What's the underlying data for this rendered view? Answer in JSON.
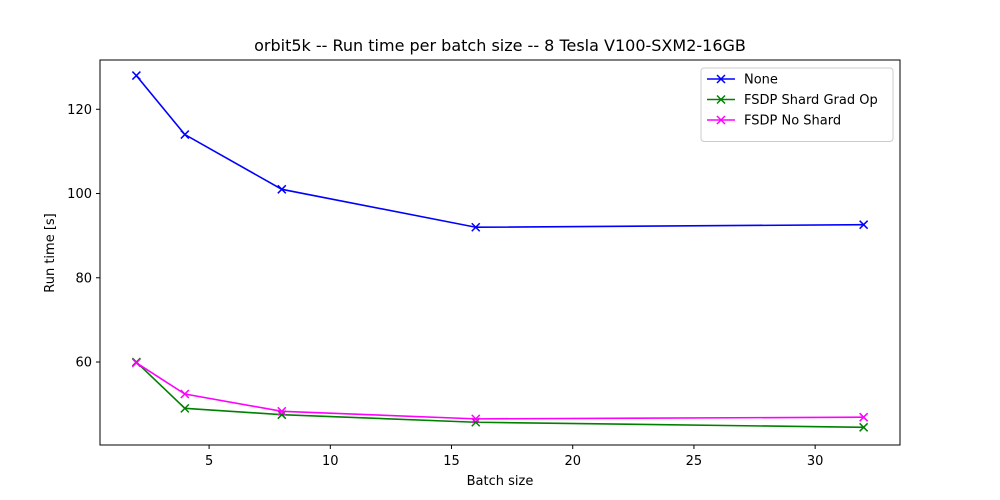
{
  "chart_data": {
    "type": "line",
    "title": "orbit5k -- Run time per batch size -- 8 Tesla V100-SXM2-16GB",
    "xlabel": "Batch size",
    "ylabel": "Run time [s]",
    "xlim": [
      0.5,
      33.5
    ],
    "ylim": [
      40.3,
      131.7
    ],
    "xticks": [
      5,
      10,
      15,
      20,
      25,
      30
    ],
    "yticks": [
      60,
      80,
      100,
      120
    ],
    "x": [
      2,
      4,
      8,
      16,
      32
    ],
    "series": [
      {
        "name": "None",
        "color": "#0000ff",
        "marker": "x",
        "values": [
          128.0,
          114.0,
          101.0,
          92.0,
          92.6
        ]
      },
      {
        "name": "FSDP Shard Grad Op",
        "color": "#008000",
        "marker": "x",
        "values": [
          60.0,
          49.0,
          47.5,
          45.7,
          44.5
        ]
      },
      {
        "name": "FSDP No Shard",
        "color": "#ff00ff",
        "marker": "x",
        "values": [
          59.8,
          52.4,
          48.3,
          46.5,
          46.9
        ]
      }
    ],
    "legend_position": "top-right",
    "grid": false
  }
}
